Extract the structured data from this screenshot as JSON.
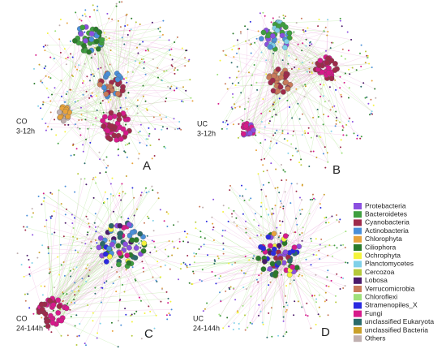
{
  "panels": [
    {
      "letter": "A",
      "group": "CO",
      "time": "3-12h"
    },
    {
      "letter": "B",
      "group": "UC",
      "time": "3-12h"
    },
    {
      "letter": "C",
      "group": "CO",
      "time": "24-144h"
    },
    {
      "letter": "D",
      "group": "UC",
      "time": "24-144h"
    }
  ],
  "legend": [
    {
      "name": "Protebacteria",
      "color": "#8b4fe0"
    },
    {
      "name": "Bacteroidetes",
      "color": "#3f9f3f"
    },
    {
      "name": "Cyanobacteria",
      "color": "#9e2a4a"
    },
    {
      "name": "Actinobacteria",
      "color": "#4a8fd9"
    },
    {
      "name": "Chlorophyta",
      "color": "#e8a33c"
    },
    {
      "name": "Ciliophora",
      "color": "#2a7a2a"
    },
    {
      "name": "Ochrophyta",
      "color": "#f3f33a"
    },
    {
      "name": "Planctomycetes",
      "color": "#7fd0e8"
    },
    {
      "name": "Cercozoa",
      "color": "#b5c93a"
    },
    {
      "name": "Lobosa",
      "color": "#4a1a6a"
    },
    {
      "name": "Verrucomicrobia",
      "color": "#c97a5a"
    },
    {
      "name": "Chloroflexi",
      "color": "#9fe07a"
    },
    {
      "name": "Stramenopiles_X",
      "color": "#2a2ae0"
    },
    {
      "name": "Fungi",
      "color": "#d61a8a"
    },
    {
      "name": "unclassified Eukaryota",
      "color": "#2a6a6a"
    },
    {
      "name": "unclassified Bacteria",
      "color": "#c9a02a"
    },
    {
      "name": "Others",
      "color": "#c0b0b0"
    }
  ]
}
